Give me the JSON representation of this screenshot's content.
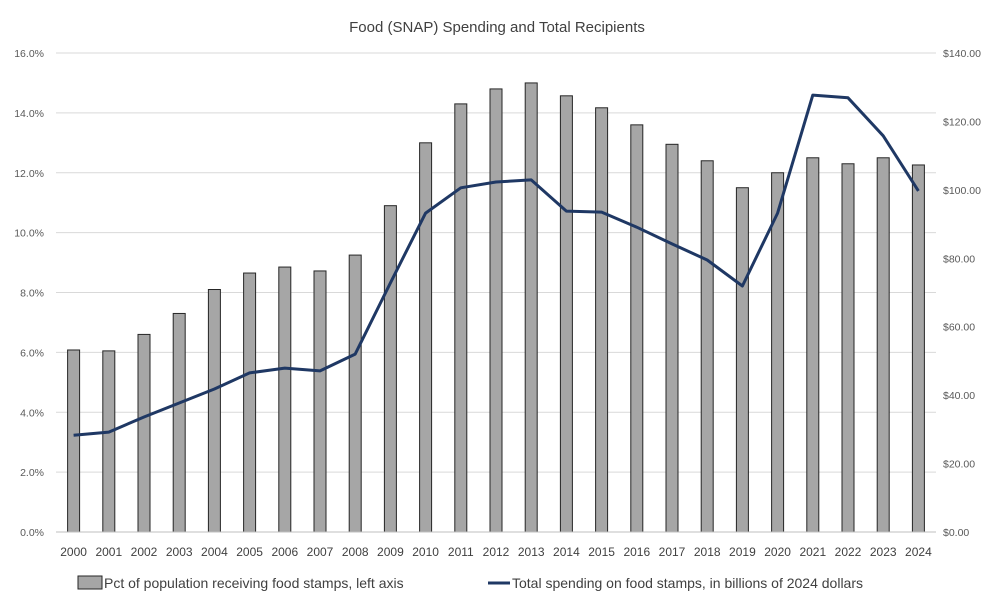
{
  "chart_data": {
    "type": "bar+line",
    "title": "Food  (SNAP) Spending and Total Recipients",
    "categories": [
      "2000",
      "2001",
      "2002",
      "2003",
      "2004",
      "2005",
      "2006",
      "2007",
      "2008",
      "2009",
      "2010",
      "2011",
      "2012",
      "2013",
      "2014",
      "2015",
      "2016",
      "2017",
      "2018",
      "2019",
      "2020",
      "2021",
      "2022",
      "2023",
      "2024"
    ],
    "series": [
      {
        "name": "Pct of population receiving food stamps, left axis",
        "type": "bar",
        "axis": "left",
        "color": "#a6a6a6",
        "values": [
          6.08,
          6.05,
          6.6,
          7.3,
          8.1,
          8.65,
          8.85,
          8.72,
          9.25,
          10.9,
          13.0,
          14.3,
          14.8,
          15.0,
          14.57,
          14.17,
          13.6,
          12.95,
          12.4,
          11.5,
          12.0,
          12.5,
          12.3,
          12.5,
          12.26
        ]
      },
      {
        "name": "Total spending on food stamps, in billions of 2024 dollars",
        "type": "line",
        "axis": "right",
        "color": "#1f3864",
        "values": [
          28.3,
          29.2,
          33.6,
          37.7,
          41.8,
          46.5,
          47.9,
          47.1,
          52.0,
          72.8,
          93.2,
          100.6,
          102.3,
          102.9,
          93.8,
          93.5,
          89.1,
          84.2,
          79.5,
          71.9,
          93.2,
          127.7,
          126.9,
          115.8,
          99.7
        ]
      }
    ],
    "left_axis": {
      "ylim": [
        0,
        16
      ],
      "ticks": [
        "0.0%",
        "2.0%",
        "4.0%",
        "6.0%",
        "8.0%",
        "10.0%",
        "12.0%",
        "14.0%",
        "16.0%"
      ],
      "tick_values": [
        0,
        2,
        4,
        6,
        8,
        10,
        12,
        14,
        16
      ]
    },
    "right_axis": {
      "ylim": [
        0,
        140
      ],
      "ticks": [
        "$0.00",
        "$20.00",
        "$40.00",
        "$60.00",
        "$80.00",
        "$100.00",
        "$120.00",
        "$140.00"
      ],
      "tick_values": [
        0,
        20,
        40,
        60,
        80,
        100,
        120,
        140
      ]
    },
    "grid": true,
    "legend": "bottom",
    "legend_entries": [
      "Pct of population receiving food stamps, left axis",
      "Total spending on food stamps, in billions of 2024 dollars"
    ]
  }
}
